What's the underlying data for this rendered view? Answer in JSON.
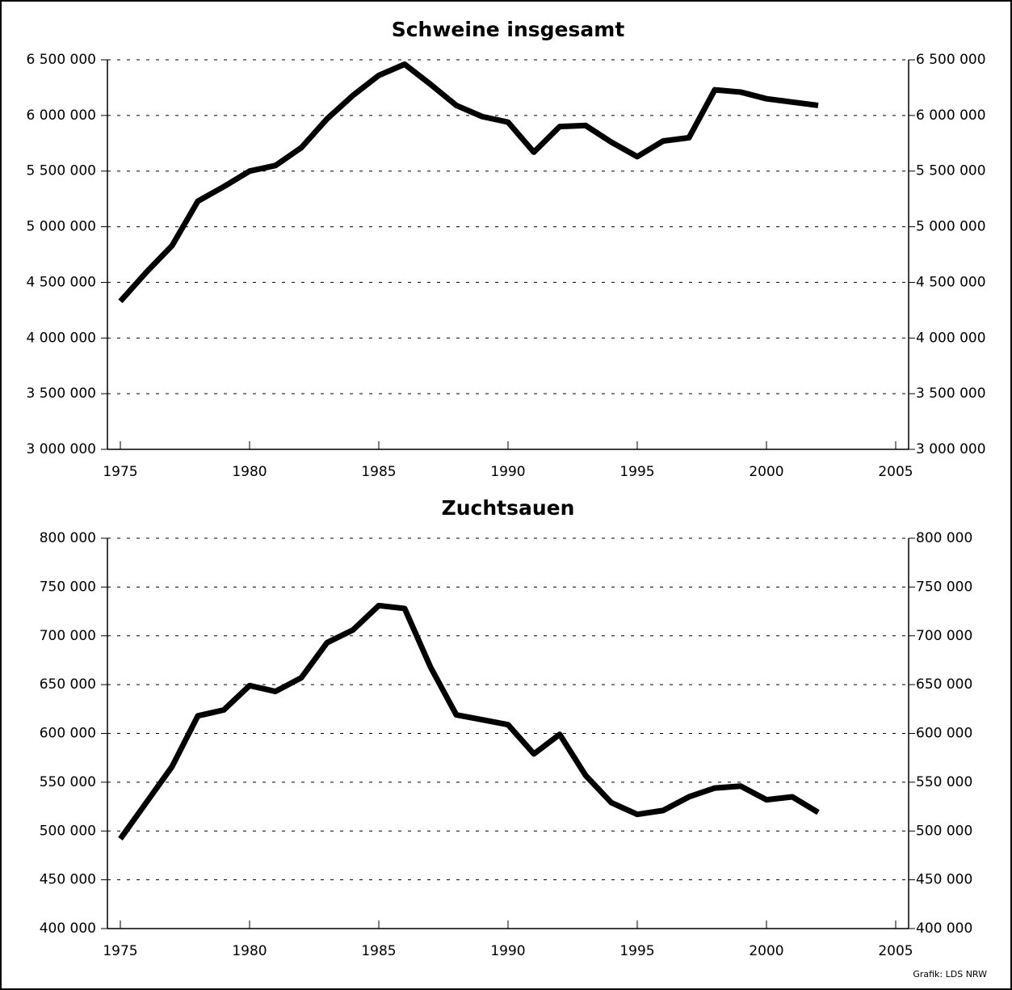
{
  "chart_data": [
    {
      "type": "line",
      "title": "Schweine insgesamt",
      "x": [
        1975,
        1976,
        1977,
        1978,
        1979,
        1980,
        1981,
        1982,
        1983,
        1984,
        1985,
        1986,
        1987,
        1988,
        1989,
        1990,
        1991,
        1992,
        1993,
        1994,
        1995,
        1996,
        1997,
        1998,
        1999,
        2000,
        2001,
        2002
      ],
      "series": [
        {
          "color": "#000000",
          "values": [
            4330000,
            4590000,
            4830000,
            5230000,
            5360000,
            5500000,
            5550000,
            5710000,
            5970000,
            6180000,
            6360000,
            6460000,
            6280000,
            6090000,
            5990000,
            5940000,
            5670000,
            5900000,
            5910000,
            5760000,
            5630000,
            5770000,
            5800000,
            6230000,
            6210000,
            6150000,
            6120000,
            6090000
          ]
        }
      ],
      "xlim": [
        1974.5,
        2005.5
      ],
      "xticks": [
        1975,
        1980,
        1985,
        1990,
        1995,
        2000,
        2005
      ],
      "ylim": [
        3000000,
        6500000
      ],
      "yticks": [
        {
          "value": 3000000,
          "label": "3 000 000"
        },
        {
          "value": 3500000,
          "label": "3 500 000"
        },
        {
          "value": 4000000,
          "label": "4 000 000"
        },
        {
          "value": 4500000,
          "label": "4 500 000"
        },
        {
          "value": 5000000,
          "label": "5 000 000"
        },
        {
          "value": 5500000,
          "label": "5 500 000"
        },
        {
          "value": 6000000,
          "label": "6 000 000"
        },
        {
          "value": 6500000,
          "label": "6 500 000"
        }
      ],
      "grid": true
    },
    {
      "type": "line",
      "title": "Zuchtsauen",
      "x": [
        1975,
        1976,
        1977,
        1978,
        1979,
        1980,
        1981,
        1982,
        1983,
        1984,
        1985,
        1986,
        1987,
        1988,
        1989,
        1990,
        1991,
        1992,
        1993,
        1994,
        1995,
        1996,
        1997,
        1998,
        1999,
        2000,
        2001,
        2002
      ],
      "series": [
        {
          "color": "#000000",
          "values": [
            492000,
            529000,
            566000,
            618000,
            624000,
            649000,
            643000,
            657000,
            693000,
            706000,
            731000,
            728000,
            668000,
            619000,
            614000,
            609000,
            579000,
            599000,
            557000,
            529000,
            517000,
            521000,
            535000,
            544000,
            546000,
            532000,
            535000,
            519000
          ]
        }
      ],
      "xlim": [
        1974.5,
        2005.5
      ],
      "xticks": [
        1975,
        1980,
        1985,
        1990,
        1995,
        2000,
        2005
      ],
      "ylim": [
        400000,
        800000
      ],
      "yticks": [
        {
          "value": 400000,
          "label": "400 000"
        },
        {
          "value": 450000,
          "label": "450 000"
        },
        {
          "value": 500000,
          "label": "500 000"
        },
        {
          "value": 550000,
          "label": "550 000"
        },
        {
          "value": 600000,
          "label": "600 000"
        },
        {
          "value": 650000,
          "label": "650 000"
        },
        {
          "value": 700000,
          "label": "700 000"
        },
        {
          "value": 750000,
          "label": "750 000"
        },
        {
          "value": 800000,
          "label": "800 000"
        }
      ],
      "grid": true
    }
  ],
  "footer": "Grafik: LDS NRW"
}
